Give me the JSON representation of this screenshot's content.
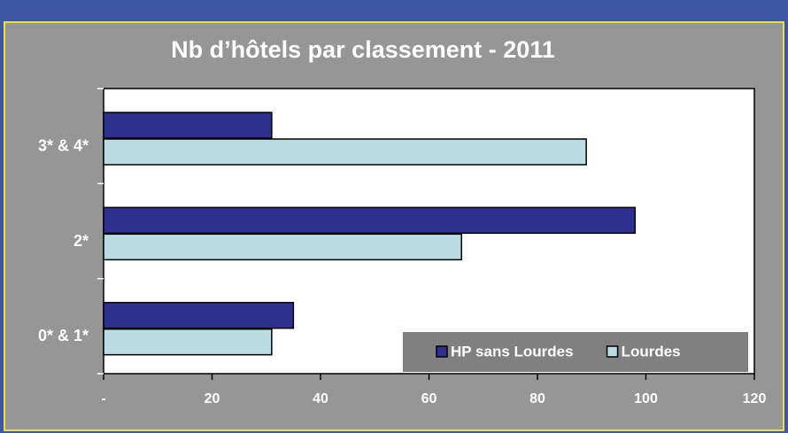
{
  "chart_data": {
    "type": "hbar",
    "title": "Nb d’hôtels par classement  - 2011",
    "categories": [
      "0* & 1*",
      "2*",
      "3* & 4*"
    ],
    "series": [
      {
        "name": "HP sans Lourdes",
        "color": "#2e2f8f",
        "values": [
          35,
          98,
          31
        ]
      },
      {
        "name": "Lourdes",
        "color": "#b9dde2",
        "values": [
          31,
          66,
          89
        ]
      }
    ],
    "xlim": [
      0,
      120
    ],
    "xticks": [
      {
        "value": 0,
        "label": "-"
      },
      20,
      40,
      60,
      80,
      100,
      120
    ],
    "legend": "bottom-right"
  }
}
